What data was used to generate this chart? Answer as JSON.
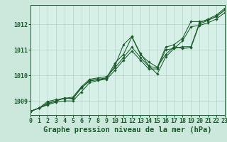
{
  "background_color": "#cce8dc",
  "plot_bg_color": "#d6f0e8",
  "grid_color": "#b0d4c4",
  "line_color": "#1a5c2a",
  "title": "Graphe pression niveau de la mer (hPa)",
  "xlim": [
    0,
    23
  ],
  "ylim": [
    1008.45,
    1012.75
  ],
  "yticks": [
    1009,
    1010,
    1011,
    1012
  ],
  "xticks": [
    0,
    1,
    2,
    3,
    4,
    5,
    6,
    7,
    8,
    9,
    10,
    11,
    12,
    13,
    14,
    15,
    16,
    17,
    18,
    19,
    20,
    21,
    22,
    23
  ],
  "series": [
    [
      1008.6,
      1008.72,
      1008.88,
      1009.0,
      1009.1,
      1009.1,
      1009.52,
      1009.78,
      1009.83,
      1009.88,
      1010.38,
      1011.2,
      1011.52,
      1010.85,
      1010.38,
      1010.05,
      1010.72,
      1011.05,
      1011.12,
      1011.12,
      1012.05,
      1012.2,
      1012.35,
      1012.62
    ],
    [
      1008.6,
      1008.72,
      1008.92,
      1009.0,
      1009.12,
      1009.08,
      1009.5,
      1009.8,
      1009.85,
      1009.9,
      1010.48,
      1010.82,
      1011.5,
      1010.82,
      1010.52,
      1010.32,
      1010.82,
      1011.12,
      1011.05,
      1011.08,
      1012.0,
      1012.15,
      1012.3,
      1012.55
    ],
    [
      1008.6,
      1008.72,
      1008.98,
      1009.05,
      1009.1,
      1009.15,
      1009.55,
      1009.85,
      1009.9,
      1009.95,
      1010.3,
      1010.7,
      1011.1,
      1010.7,
      1010.35,
      1010.3,
      1011.1,
      1011.2,
      1011.45,
      1012.1,
      1012.1,
      1012.15,
      1012.3,
      1012.55
    ],
    [
      1008.6,
      1008.72,
      1008.85,
      1008.95,
      1009.0,
      1009.0,
      1009.35,
      1009.72,
      1009.8,
      1009.85,
      1010.2,
      1010.6,
      1010.95,
      1010.6,
      1010.25,
      1010.25,
      1011.0,
      1011.05,
      1011.35,
      1011.9,
      1011.95,
      1012.05,
      1012.2,
      1012.45
    ]
  ],
  "title_fontsize": 7.5,
  "tick_fontsize": 6.0,
  "marker": "D",
  "markersize": 1.8,
  "linewidth": 0.75
}
